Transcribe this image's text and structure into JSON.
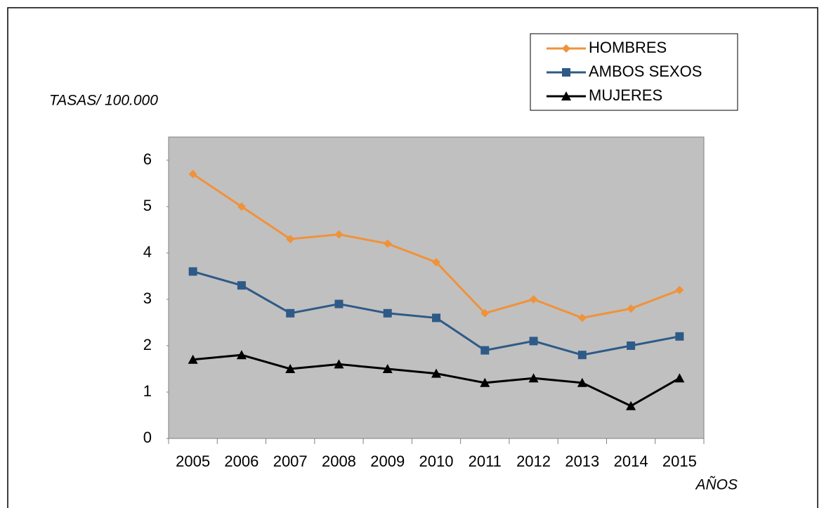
{
  "chart_data": {
    "type": "line",
    "y_label": "TASAS/ 100.000",
    "x_label": "AÑOS",
    "categories": [
      "2005",
      "2006",
      "2007",
      "2008",
      "2009",
      "2010",
      "2011",
      "2012",
      "2013",
      "2014",
      "2015"
    ],
    "series": [
      {
        "name": "HOMBRES",
        "color": "#f0923a",
        "marker": "diamond",
        "values": [
          5.7,
          5.0,
          4.3,
          4.4,
          4.2,
          3.8,
          2.7,
          3.0,
          2.6,
          2.8,
          3.2
        ]
      },
      {
        "name": "AMBOS SEXOS",
        "color": "#2e5a87",
        "marker": "square",
        "values": [
          3.6,
          3.3,
          2.7,
          2.9,
          2.7,
          2.6,
          1.9,
          2.1,
          1.8,
          2.0,
          2.2
        ]
      },
      {
        "name": "MUJERES",
        "color": "#000000",
        "marker": "triangle",
        "values": [
          1.7,
          1.8,
          1.5,
          1.6,
          1.5,
          1.4,
          1.2,
          1.3,
          1.2,
          0.7,
          1.3
        ]
      }
    ],
    "ylim": [
      0,
      6.5
    ],
    "yticks": [
      0,
      1,
      2,
      3,
      4,
      5,
      6
    ],
    "grid": false,
    "legend": "top-right"
  }
}
